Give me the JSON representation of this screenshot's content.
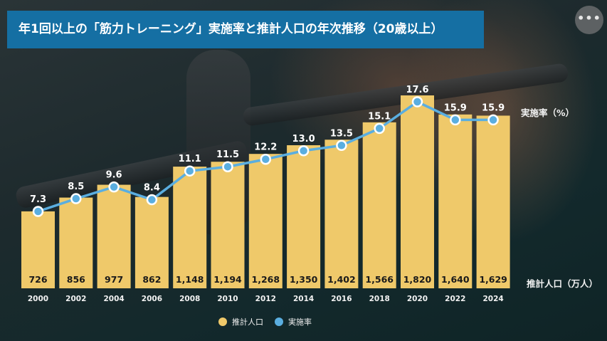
{
  "title": "年1回以上の「筋力トレーニング」実施率と推計人口の年次推移（20歳以上）",
  "more_button": {
    "icon": "more-horizontal-icon",
    "glyph": "•••"
  },
  "chart_data": {
    "type": "bar+line",
    "title": "年1回以上の「筋力トレーニング」実施率と推計人口の年次推移（20歳以上）",
    "categories": [
      "2000",
      "2002",
      "2004",
      "2006",
      "2008",
      "2010",
      "2012",
      "2014",
      "2016",
      "2018",
      "2020",
      "2022",
      "2024"
    ],
    "series": [
      {
        "name": "推計人口",
        "type": "bar",
        "unit": "万人",
        "color": "#efc96a",
        "values": [
          726,
          856,
          977,
          862,
          1148,
          1194,
          1268,
          1350,
          1402,
          1566,
          1820,
          1640,
          1629
        ],
        "labels": [
          "726",
          "856",
          "977",
          "862",
          "1,148",
          "1,194",
          "1,268",
          "1,350",
          "1,402",
          "1,566",
          "1,820",
          "1,640",
          "1,629"
        ]
      },
      {
        "name": "実施率",
        "type": "line",
        "unit": "%",
        "color": "#5aaee0",
        "values": [
          7.3,
          8.5,
          9.6,
          8.4,
          11.1,
          11.5,
          12.2,
          13.0,
          13.5,
          15.1,
          17.6,
          15.9,
          15.9
        ],
        "labels": [
          "7.3",
          "8.5",
          "9.6",
          "8.4",
          "11.1",
          "11.5",
          "12.2",
          "13.0",
          "13.5",
          "15.1",
          "17.6",
          "15.9",
          "15.9"
        ]
      }
    ],
    "axis_labels": {
      "line": "実施率（%）",
      "bar": "推計人口（万人）"
    },
    "legend": {
      "position": "bottom",
      "items": [
        "推計人口",
        "実施率"
      ]
    },
    "grid": false
  }
}
